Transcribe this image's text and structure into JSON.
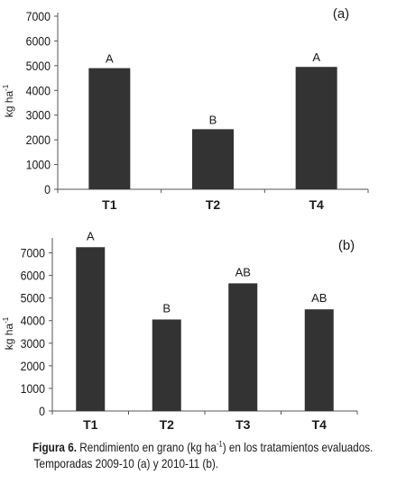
{
  "chart_data": [
    {
      "type": "bar",
      "panel_label": "(a)",
      "categories": [
        "T1",
        "T2",
        "T4"
      ],
      "values": [
        4900,
        2430,
        4950
      ],
      "bar_labels": [
        "A",
        "B",
        "A"
      ],
      "ylabel": "kg ha",
      "ylabel_sup": "-1",
      "ylim": [
        0,
        7000
      ],
      "yticks": [
        0,
        1000,
        2000,
        3000,
        4000,
        5000,
        6000,
        7000
      ],
      "grid": false,
      "bar_color": "#333333"
    },
    {
      "type": "bar",
      "panel_label": "(b)",
      "categories": [
        "T1",
        "T2",
        "T3",
        "T4"
      ],
      "values": [
        7250,
        4050,
        5650,
        4500
      ],
      "bar_labels": [
        "A",
        "B",
        "AB",
        "AB"
      ],
      "ylabel": "kg ha",
      "ylabel_sup": "-1",
      "ylim": [
        0,
        7500
      ],
      "yticks": [
        0,
        1000,
        2000,
        3000,
        4000,
        5000,
        6000,
        7000
      ],
      "grid": false,
      "bar_color": "#333333"
    }
  ],
  "caption": {
    "label": "Figura 6.",
    "text_before_sup": " Rendimiento en grano (kg ha",
    "sup": "-1",
    "text_after_sup": ") en los tratamientos evaluados.",
    "line2": "Temporadas 2009-10 (a) y 2010-11 (b)."
  }
}
